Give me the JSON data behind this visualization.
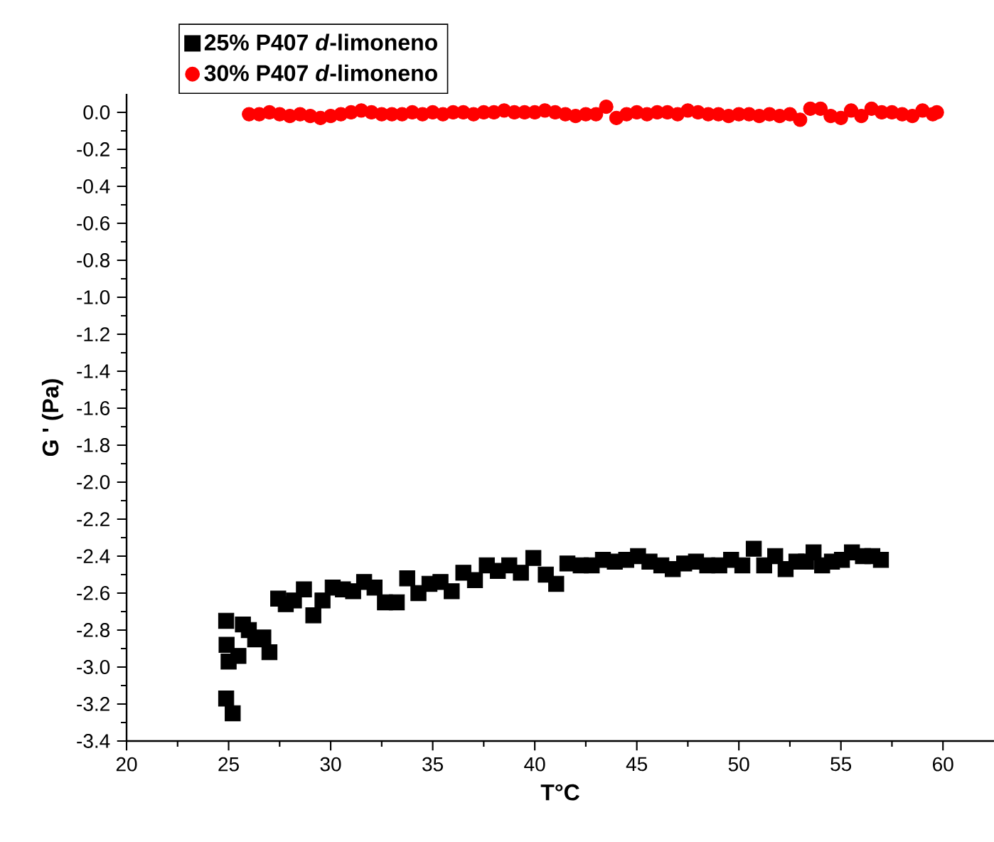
{
  "chart_data": {
    "type": "scatter",
    "xlabel": "T°C",
    "ylabel": "G ' (Pa)",
    "xlim": [
      20,
      62.5
    ],
    "ylim": [
      -3.4,
      0.1
    ],
    "xticks": [
      20,
      25,
      30,
      35,
      40,
      45,
      50,
      55,
      60
    ],
    "yticks": [
      {
        "value": 0,
        "label": "0.0"
      },
      -0.2,
      -0.4,
      -0.6,
      -0.8,
      {
        "value": -1,
        "label": "-1.0"
      },
      -1.2,
      -1.4,
      -1.6,
      -1.8,
      {
        "value": -2,
        "label": "-2.0"
      },
      -2.2,
      -2.4,
      -2.6,
      -2.8,
      {
        "value": -3,
        "label": "-3.0"
      },
      -3.2,
      -3.4
    ],
    "legend": "top",
    "grid": false,
    "series": [
      {
        "name": "25% P407 *d*-limoneno",
        "color": "#000000",
        "marker": "square",
        "x": [
          24.88,
          24.9,
          25.0,
          24.88,
          25.2,
          25.48,
          25.7,
          25.99,
          26.3,
          26.7,
          27.0,
          27.43,
          27.8,
          28.2,
          28.69,
          29.15,
          29.6,
          30.1,
          30.6,
          31.1,
          31.64,
          32.15,
          32.66,
          33.24,
          33.75,
          34.3,
          34.84,
          35.38,
          35.93,
          36.5,
          37.07,
          37.65,
          38.19,
          38.75,
          39.32,
          39.93,
          40.54,
          41.05,
          41.6,
          42.25,
          42.79,
          43.34,
          43.92,
          44.48,
          45.06,
          45.62,
          46.2,
          46.76,
          47.32,
          47.9,
          48.45,
          49.04,
          49.62,
          50.17,
          50.73,
          51.24,
          51.78,
          52.29,
          52.82,
          53.29,
          53.66,
          54.08,
          54.56,
          55.05,
          55.54,
          56.08,
          56.54,
          56.96
        ],
        "values": [
          -2.75,
          -2.88,
          -2.97,
          -3.17,
          -3.25,
          -2.94,
          -2.77,
          -2.8,
          -2.85,
          -2.84,
          -2.92,
          -2.63,
          -2.66,
          -2.64,
          -2.58,
          -2.72,
          -2.64,
          -2.57,
          -2.58,
          -2.59,
          -2.54,
          -2.57,
          -2.65,
          -2.65,
          -2.52,
          -2.6,
          -2.55,
          -2.54,
          -2.59,
          -2.49,
          -2.53,
          -2.45,
          -2.48,
          -2.45,
          -2.49,
          -2.41,
          -2.5,
          -2.55,
          -2.44,
          -2.45,
          -2.45,
          -2.42,
          -2.43,
          -2.42,
          -2.4,
          -2.43,
          -2.45,
          -2.47,
          -2.44,
          -2.43,
          -2.45,
          -2.45,
          -2.42,
          -2.45,
          -2.36,
          -2.45,
          -2.4,
          -2.47,
          -2.43,
          -2.43,
          -2.38,
          -2.45,
          -2.43,
          -2.42,
          -2.38,
          -2.4,
          -2.4,
          -2.42
        ]
      },
      {
        "name": "30% P407 *d*-limoneno",
        "color": "#ff0000",
        "marker": "circle",
        "x": [
          26.0,
          26.5,
          27.0,
          27.5,
          28.0,
          28.5,
          29.0,
          29.5,
          30.0,
          30.5,
          31.0,
          31.5,
          32.0,
          32.5,
          33.0,
          33.5,
          34.0,
          34.5,
          35.0,
          35.5,
          36.0,
          36.5,
          37.0,
          37.5,
          38.0,
          38.5,
          39.0,
          39.5,
          40.0,
          40.5,
          41.0,
          41.5,
          42.0,
          42.5,
          43.0,
          43.5,
          44.0,
          44.5,
          45.0,
          45.5,
          46.0,
          46.5,
          47.0,
          47.5,
          48.0,
          48.5,
          49.0,
          49.5,
          50.0,
          50.5,
          51.0,
          51.5,
          52.0,
          52.5,
          53.0,
          53.5,
          54.0,
          54.5,
          55.0,
          55.5,
          56.0,
          56.5,
          57.0,
          57.5,
          58.0,
          58.5,
          59.0,
          59.5,
          59.7
        ],
        "values": [
          -0.01,
          -0.01,
          0.0,
          -0.01,
          -0.02,
          -0.01,
          -0.02,
          -0.03,
          -0.02,
          -0.01,
          0.0,
          0.01,
          0.0,
          -0.01,
          -0.01,
          -0.01,
          0.0,
          -0.01,
          0.0,
          -0.01,
          0.0,
          0.0,
          -0.01,
          0.0,
          0.0,
          0.01,
          0.0,
          0.0,
          0.0,
          0.01,
          0.0,
          -0.01,
          -0.02,
          -0.01,
          -0.01,
          0.03,
          -0.03,
          -0.01,
          0.0,
          -0.01,
          0.0,
          0.0,
          -0.01,
          0.01,
          0.0,
          -0.01,
          -0.01,
          -0.02,
          -0.01,
          -0.01,
          -0.02,
          -0.01,
          -0.02,
          -0.01,
          -0.04,
          0.02,
          0.02,
          -0.02,
          -0.03,
          0.01,
          -0.02,
          0.02,
          0.0,
          0.0,
          -0.01,
          -0.02,
          0.01,
          -0.01,
          0.0
        ]
      }
    ]
  }
}
